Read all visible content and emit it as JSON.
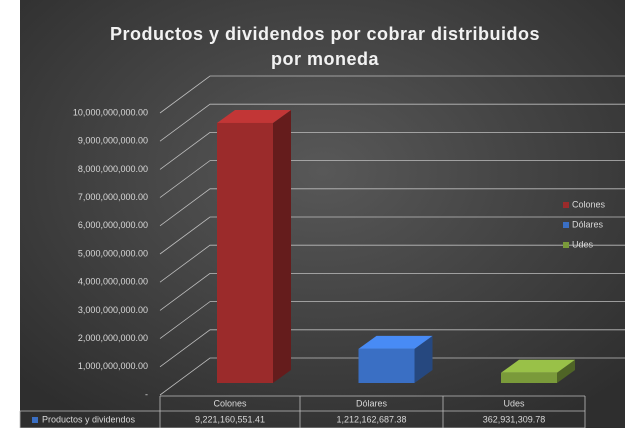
{
  "chart_data": {
    "type": "bar3d",
    "title": "Productos y dividendos por cobrar distribuidos por moneda",
    "categories": [
      "Colones",
      "Dólares",
      "Udes"
    ],
    "series": [
      {
        "name": "Productos y dividendos",
        "color": "#3a6fc4",
        "values": [
          9221160551.41,
          1212162687.38,
          362931309.78
        ],
        "value_labels": [
          "9,221,160,551.41",
          "1,212,162,687.38",
          "362,931,309.78"
        ]
      }
    ],
    "colors": [
      "#9b2b2b",
      "#3a6fc4",
      "#7a9a3a"
    ],
    "ylim": [
      0,
      10000000000
    ],
    "yticks": [
      {
        "value": 0,
        "label": "-"
      },
      {
        "value": 1000000000,
        "label": "1,000,000,000.00"
      },
      {
        "value": 2000000000,
        "label": "2,000,000,000.00"
      },
      {
        "value": 3000000000,
        "label": "3,000,000,000.00"
      },
      {
        "value": 4000000000,
        "label": "4,000,000,000.00"
      },
      {
        "value": 5000000000,
        "label": "5,000,000,000.00"
      },
      {
        "value": 6000000000,
        "label": "6,000,000,000.00"
      },
      {
        "value": 7000000000,
        "label": "7,000,000,000.00"
      },
      {
        "value": 8000000000,
        "label": "8,000,000,000.00"
      },
      {
        "value": 9000000000,
        "label": "9,000,000,000.00"
      },
      {
        "value": 10000000000,
        "label": "10,000,000,000.00"
      }
    ],
    "grid": true,
    "legend": "right"
  }
}
